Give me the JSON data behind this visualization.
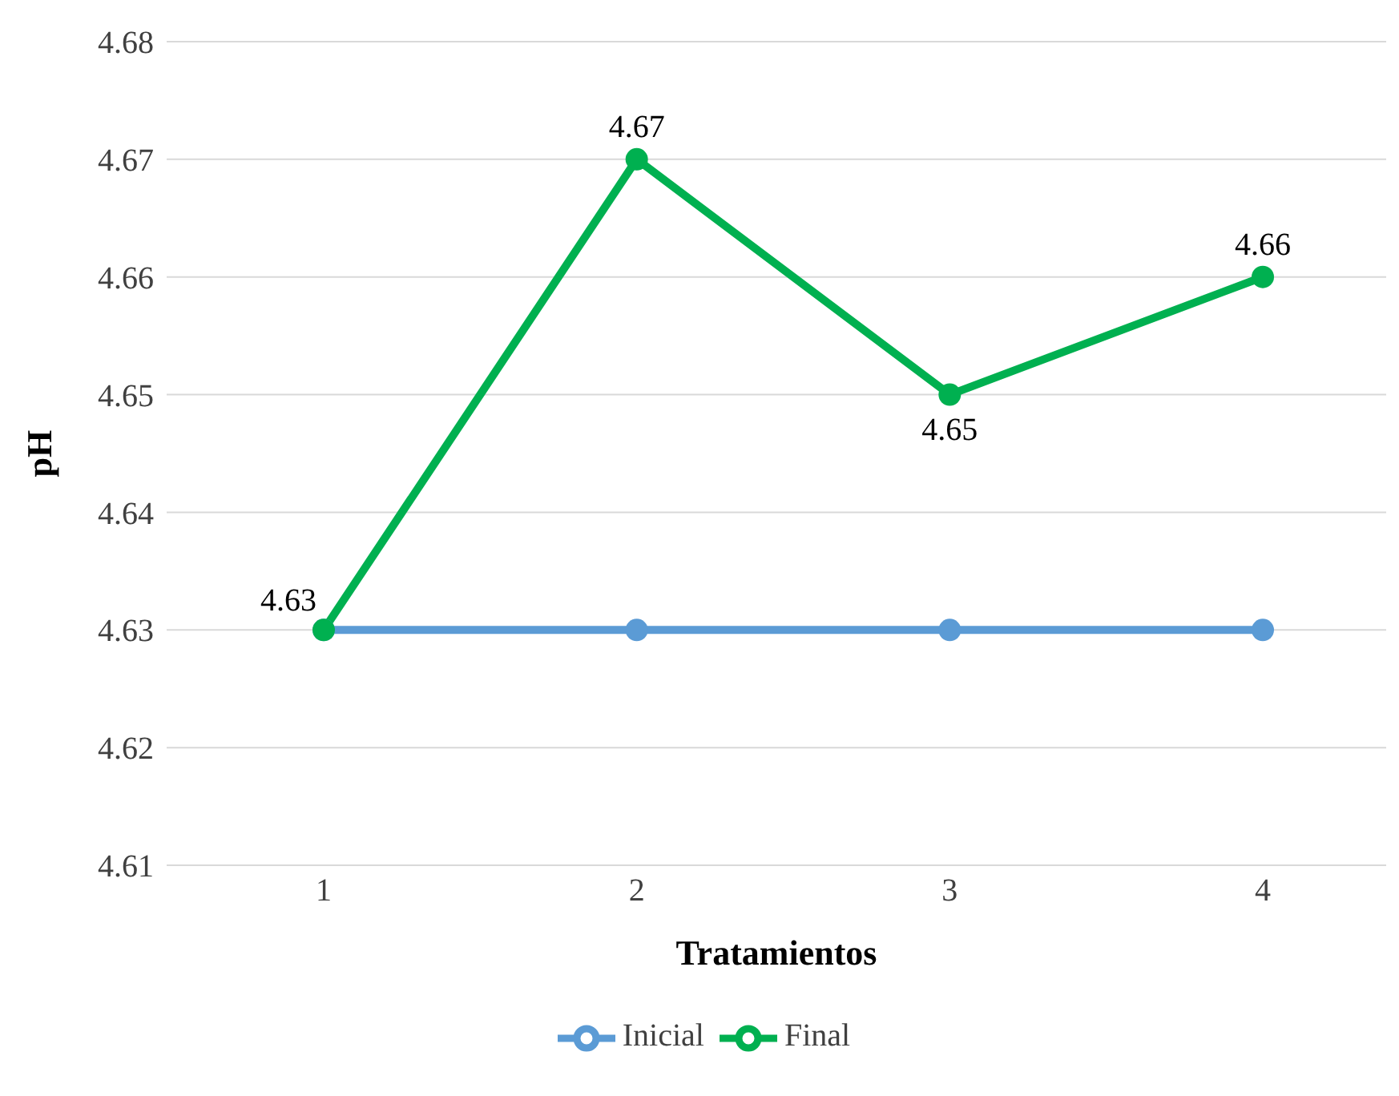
{
  "chart_data": {
    "type": "line",
    "xlabel": "Tratamientos",
    "ylabel": "pH",
    "categories": [
      "1",
      "2",
      "3",
      "4"
    ],
    "series": [
      {
        "name": "Inicial",
        "color": "#5b9bd5",
        "values": [
          4.63,
          4.63,
          4.63,
          4.63
        ]
      },
      {
        "name": "Final",
        "color": "#00b050",
        "values": [
          4.63,
          4.67,
          4.65,
          4.66
        ],
        "value_labels": [
          "4.63",
          "4.67",
          "4.65",
          "4.66"
        ]
      }
    ],
    "ylim": [
      4.61,
      4.68
    ],
    "yticks": [
      4.61,
      4.62,
      4.63,
      4.64,
      4.65,
      4.66,
      4.67,
      4.68
    ],
    "grid": "y",
    "legend": "bottom",
    "marker": "circle",
    "line_style": "solid"
  }
}
